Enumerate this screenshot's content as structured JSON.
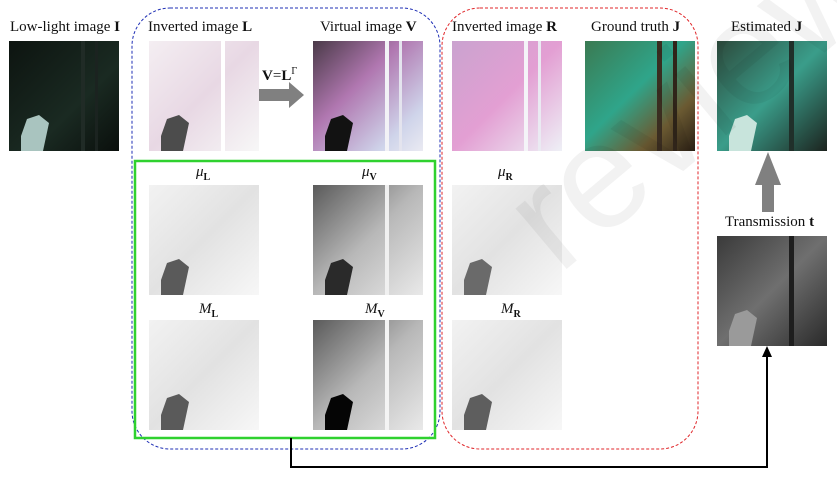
{
  "labels": {
    "low_light": {
      "text": "Low-light image ",
      "sym": "I"
    },
    "inverted_L": {
      "text": "Inverted image ",
      "sym": "L"
    },
    "virtual_V": {
      "text": "Virtual image ",
      "sym": "V"
    },
    "inverted_R": {
      "text": "Inverted image ",
      "sym": "R"
    },
    "ground_truth": {
      "text": "Ground truth ",
      "sym": "J"
    },
    "estimated": {
      "text": "Estimated ",
      "sym": "J"
    },
    "transmission": {
      "text": "Transmission ",
      "sym": "t"
    }
  },
  "equation": {
    "lhs": "V",
    "eq": "=",
    "base": "L",
    "exp": "Γ"
  },
  "maps": {
    "mu_L": {
      "sym": "μ",
      "sub": "L"
    },
    "mu_V": {
      "sym": "μ",
      "sub": "V"
    },
    "mu_R": {
      "sym": "μ",
      "sub": "R"
    },
    "M_L": {
      "sym": "M",
      "sub": "L"
    },
    "M_V": {
      "sym": "M",
      "sub": "V"
    },
    "M_R": {
      "sym": "M",
      "sub": "R"
    }
  },
  "watermark": "review",
  "colors": {
    "blue_box": "#1f2fb5",
    "red_box": "#e0262a",
    "green_box": "#2fd12f",
    "arrow_gray": "#808080"
  }
}
